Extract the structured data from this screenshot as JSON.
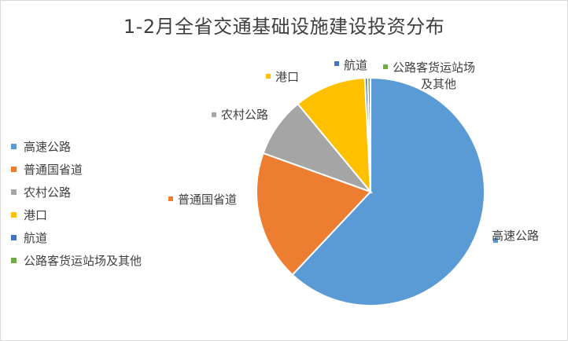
{
  "chart_data": {
    "type": "pie",
    "title": "1-2月全省交通基础设施建设投资分布",
    "series": [
      {
        "name": "高速公路",
        "value": 62.0,
        "color": "#5b9bd5"
      },
      {
        "name": "普通国省道",
        "value": 18.5,
        "color": "#ed7d31"
      },
      {
        "name": "农村公路",
        "value": 8.5,
        "color": "#a5a5a5"
      },
      {
        "name": "港口",
        "value": 10.2,
        "color": "#ffc000"
      },
      {
        "name": "航道",
        "value": 0.4,
        "color": "#4472c4"
      },
      {
        "name": "公路客货运站场及其他",
        "value": 0.4,
        "color": "#70ad47"
      }
    ],
    "data_labels": [
      {
        "series": "高速公路",
        "lines": [
          "高速公路"
        ]
      },
      {
        "series": "普通国省道",
        "lines": [
          "普通国省道"
        ]
      },
      {
        "series": "农村公路",
        "lines": [
          "农村公路"
        ]
      },
      {
        "series": "港口",
        "lines": [
          "港口"
        ]
      },
      {
        "series": "航道",
        "lines": [
          "航道"
        ]
      },
      {
        "series": "公路客货运站场及其他",
        "lines": [
          "公路客货运站场",
          "及其他"
        ]
      }
    ],
    "legend": {
      "position": "left",
      "entries": [
        "高速公路",
        "普通国省道",
        "农村公路",
        "港口",
        "航道",
        "公路客货运站场及其他"
      ]
    },
    "start_angle_deg": 0,
    "direction": "clockwise"
  }
}
